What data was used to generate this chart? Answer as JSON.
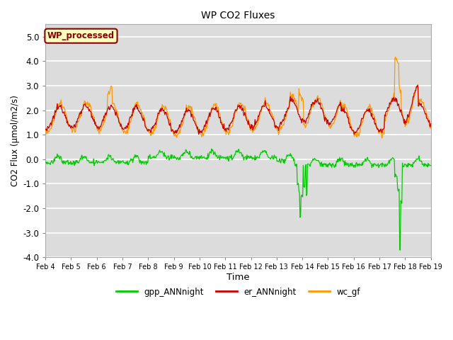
{
  "title": "WP CO2 Fluxes",
  "xlabel": "Time",
  "ylabel": "CO2 Flux (μmol/m2/s)",
  "ylim": [
    -4.0,
    5.5
  ],
  "yticks": [
    -4.0,
    -3.0,
    -2.0,
    -1.0,
    0.0,
    1.0,
    2.0,
    3.0,
    4.0,
    5.0
  ],
  "color_gpp": "#00CC00",
  "color_er": "#CC0000",
  "color_wc": "#FF9900",
  "legend_label_gpp": "gpp_ANNnight",
  "legend_label_er": "er_ANNnight",
  "legend_label_wc": "wc_gf",
  "annotation_text": "WP_processed",
  "annotation_color": "#8B0000",
  "annotation_bg": "#FFFFC0",
  "background_color": "#DCDCDC",
  "grid_color": "#FFFFFF",
  "xtick_labels": [
    "Feb 4",
    "Feb 5",
    "Feb 6",
    "Feb 7",
    "Feb 8",
    "Feb 9",
    "Feb 10",
    "Feb 11",
    "Feb 12",
    "Feb 13",
    "Feb 14",
    "Feb 15",
    "Feb 16",
    "Feb 17",
    "Feb 18",
    "Feb 19"
  ],
  "n_days": 15,
  "pts_per_day": 48
}
